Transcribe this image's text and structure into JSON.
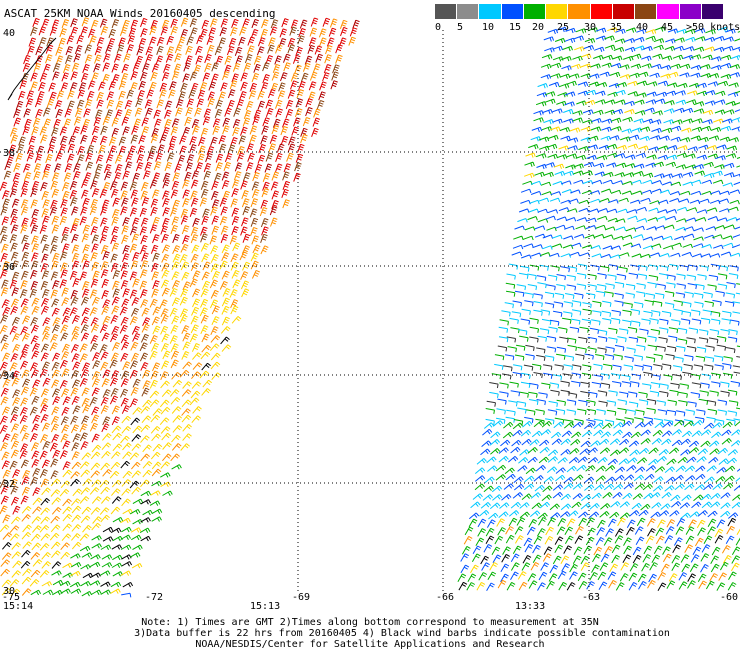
{
  "title": "ASCAT 25KM NOAA Winds 20160405 descending",
  "legend": {
    "colors": [
      "#555555",
      "#8c8c8c",
      "#00c8ff",
      "#0050ff",
      "#00b000",
      "#ffd700",
      "#ff9000",
      "#ff0000",
      "#c80000",
      "#8b4513",
      "#ff00ff",
      "#8b00c8",
      "#3a006e"
    ],
    "labels": [
      "0",
      "5",
      "10",
      "15",
      "20",
      "25",
      "30",
      "35",
      "40",
      "45",
      ">50 knots"
    ]
  },
  "map": {
    "lat_labels": [
      "40",
      "38",
      "36",
      "34",
      "32",
      "30"
    ],
    "lon_labels": [
      "-75",
      "-72",
      "-69",
      "-66",
      "-63",
      "-60"
    ],
    "time_labels": [
      "15:14",
      "15:13",
      "13:33"
    ],
    "time_color": "#800080"
  },
  "chart_data": {
    "type": "wind-barb-map",
    "title": "ASCAT 25KM NOAA Winds 20160405 descending",
    "lat_range": [
      30,
      40
    ],
    "lon_range": [
      -75,
      -60
    ],
    "grid": true,
    "legend_placement": "top-right",
    "swaths": [
      {
        "name": "west",
        "time": "15:14 / 15:13",
        "dominant_speeds_knots": [
          25,
          30,
          35,
          40
        ]
      },
      {
        "name": "east",
        "time": "13:33",
        "dominant_speeds_knots": [
          5,
          10,
          15,
          20
        ]
      }
    ]
  },
  "notes": {
    "line1": "Note: 1) Times are GMT 2)Times along bottom correspond to measurement at 35N",
    "line2": "3)Data buffer is 22 hrs from 20160405 4) Black wind barbs indicate possible contamination",
    "line3": "NOAA/NESDIS/Center for Satellite Applications and Research"
  }
}
